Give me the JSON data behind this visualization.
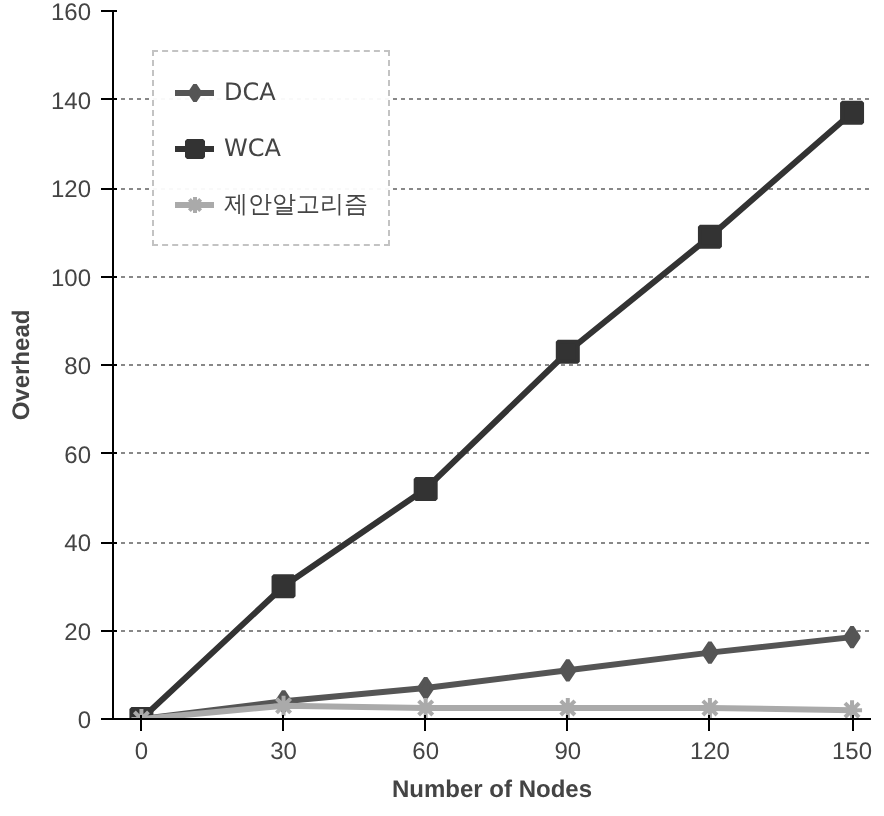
{
  "chart_data": {
    "type": "line",
    "xlabel": "Number of Nodes",
    "ylabel": "Overhead",
    "x": [
      0,
      30,
      60,
      90,
      120,
      150
    ],
    "series": [
      {
        "name": "DCA",
        "color": "#555555",
        "values": [
          0,
          4,
          7,
          11,
          15,
          18.5
        ],
        "marker": "diamond"
      },
      {
        "name": "WCA",
        "color": "#333333",
        "values": [
          0,
          30,
          52,
          83,
          109,
          137
        ],
        "marker": "square"
      },
      {
        "name": "제안알고리즘",
        "color": "#aaaaaa",
        "values": [
          0,
          3,
          2.5,
          2.5,
          2.5,
          2
        ],
        "marker": "cross"
      }
    ],
    "xlim": [
      -6,
      154
    ],
    "xticks": [
      0,
      30,
      60,
      90,
      120,
      150
    ],
    "ylim": [
      0,
      160
    ],
    "yticks": [
      0,
      20,
      40,
      60,
      80,
      100,
      120,
      140,
      160
    ],
    "grid": "y",
    "legend": "top left",
    "line_style": "solid"
  }
}
